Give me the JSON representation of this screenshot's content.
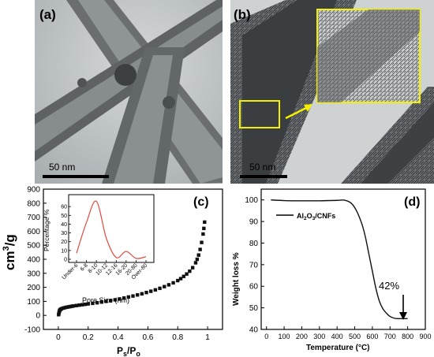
{
  "panel_a": {
    "label": "(a)",
    "scale_bar": "50 nm"
  },
  "panel_b": {
    "label": "(b)",
    "scale_bar": "50 nm"
  },
  "chart_data": [
    {
      "id": "c",
      "type": "scatter",
      "panel_label": "(c)",
      "xlabel_main": "P",
      "xlabel_sub1": "s",
      "xlabel_mid": "/P",
      "xlabel_sub2": "o",
      "ylabel": "cm",
      "ylabel_sup": "3",
      "ylabel_tail": "/g",
      "xlim": [
        0,
        1
      ],
      "ylim": [
        -100,
        900
      ],
      "xticks": [
        0,
        0.2,
        0.4,
        0.6,
        0.8,
        1
      ],
      "xtick_labels": [
        "0",
        "0.2",
        "0.4",
        "0.6",
        "0.8",
        "1"
      ],
      "yticks": [
        -100,
        0,
        100,
        200,
        300,
        400,
        500,
        600,
        700,
        800,
        900
      ],
      "ytick_labels": [
        "-100",
        "0",
        "100",
        "200",
        "300",
        "400",
        "500",
        "600",
        "700",
        "800",
        "900"
      ],
      "series": [
        {
          "x": [
            0.002,
            0.004,
            0.006,
            0.008,
            0.01,
            0.015,
            0.02,
            0.03,
            0.04,
            0.05,
            0.06,
            0.07,
            0.08,
            0.09,
            0.1,
            0.12,
            0.14,
            0.16,
            0.18,
            0.2,
            0.23,
            0.26,
            0.29,
            0.32,
            0.35,
            0.38,
            0.41,
            0.44,
            0.47,
            0.5,
            0.53,
            0.56,
            0.59,
            0.62,
            0.65,
            0.68,
            0.71,
            0.74,
            0.77,
            0.8,
            0.82,
            0.84,
            0.86,
            0.88,
            0.9,
            0.92,
            0.93,
            0.94,
            0.95,
            0.96,
            0.97,
            0.975,
            0.98
          ],
          "y": [
            5,
            15,
            25,
            32,
            38,
            43,
            47,
            51,
            54,
            57,
            59,
            61,
            63,
            65,
            67,
            70,
            73,
            76,
            79,
            82,
            86,
            90,
            95,
            100,
            105,
            111,
            117,
            124,
            131,
            138,
            146,
            154,
            163,
            172,
            182,
            193,
            205,
            218,
            232,
            248,
            262,
            278,
            295,
            315,
            340,
            375,
            400,
            430,
            470,
            520,
            580,
            620,
            665
          ],
          "color": "#111111"
        }
      ],
      "inset": {
        "type": "line",
        "xlabel": "Pore Size (nm)",
        "ylabel": "Percentage %",
        "categories": [
          "Under-6",
          "6-8",
          "8-10",
          "10-12",
          "12-16",
          "16-20",
          "20-80",
          "Over-80"
        ],
        "ylim": [
          0,
          70
        ],
        "yticks": [
          0,
          10,
          20,
          30,
          40,
          50,
          60
        ],
        "ytick_labels": [
          "0",
          "10",
          "20",
          "30",
          "40",
          "50",
          "60"
        ],
        "values": [
          7,
          42,
          66,
          24,
          2,
          9,
          1,
          3
        ],
        "color": "#e04a40"
      }
    },
    {
      "id": "d",
      "type": "line",
      "panel_label": "(d)",
      "xlabel": "Temperature (°C)",
      "ylabel": "Weight loss %",
      "xlim": [
        -30,
        900
      ],
      "ylim": [
        40,
        105
      ],
      "xticks": [
        0,
        100,
        200,
        300,
        400,
        500,
        600,
        700,
        800,
        900
      ],
      "xtick_labels": [
        "0",
        "100",
        "200",
        "300",
        "400",
        "500",
        "600",
        "700",
        "800",
        "900"
      ],
      "yticks": [
        40,
        50,
        60,
        70,
        80,
        90,
        100
      ],
      "ytick_labels": [
        "40",
        "50",
        "60",
        "70",
        "80",
        "90",
        "100"
      ],
      "legend_main": "Al",
      "legend_s1": "2",
      "legend_mid": "O",
      "legend_s2": "3",
      "legend_tail": "/CNFs",
      "annotation": "42%",
      "series": [
        {
          "x": [
            25,
            100,
            200,
            300,
            400,
            440,
            480,
            510,
            540,
            560,
            580,
            600,
            620,
            640,
            660,
            680,
            700,
            720,
            740,
            760,
            780,
            800
          ],
          "y": [
            100,
            99.7,
            99.6,
            99.6,
            99.8,
            99.9,
            98.5,
            95,
            89,
            83,
            75,
            67,
            59,
            53,
            49.5,
            47.5,
            46,
            45.3,
            45,
            45,
            45,
            45
          ],
          "color": "#111111"
        }
      ]
    }
  ]
}
